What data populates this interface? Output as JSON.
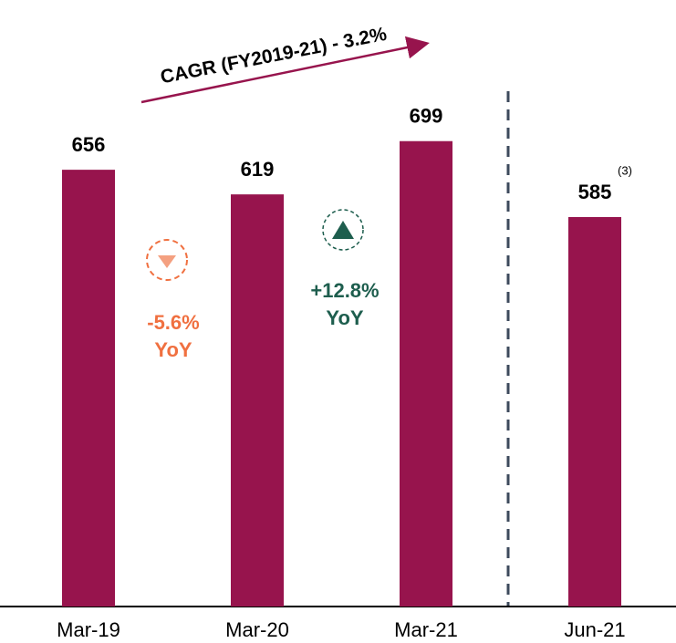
{
  "chart_data": {
    "type": "bar",
    "categories": [
      "Mar-19",
      "Mar-20",
      "Mar-21",
      "Jun-21"
    ],
    "values": [
      656,
      619,
      699,
      585
    ],
    "color": "#97144d",
    "annotations": {
      "cagr": "CAGR (FY2019-21) -  3.2%",
      "decline": [
        "-5.6%",
        "YoY"
      ],
      "growth": [
        "+12.8%",
        "YoY"
      ],
      "footnote": "(3)"
    }
  }
}
